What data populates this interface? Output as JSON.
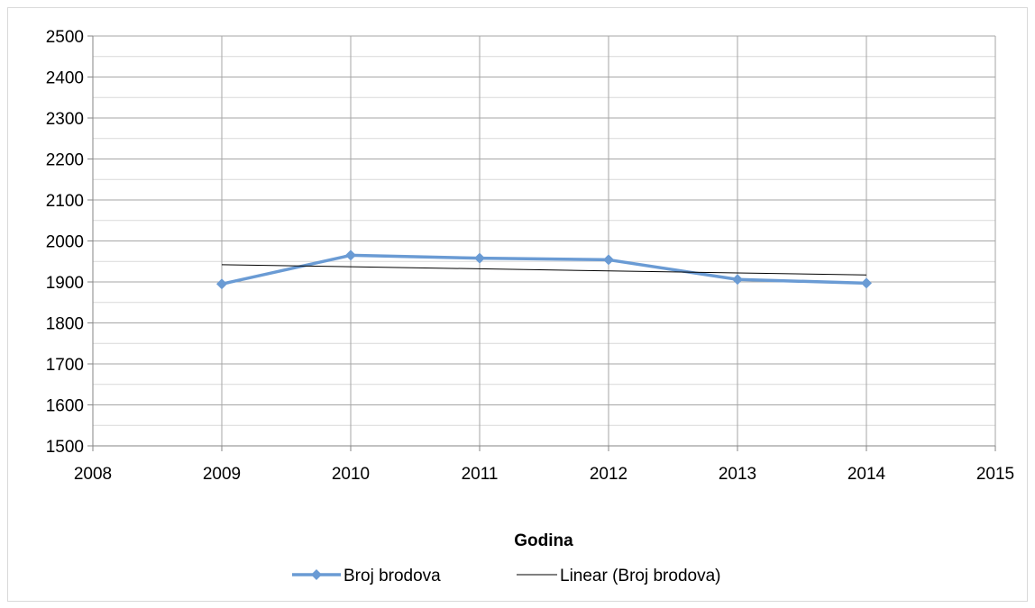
{
  "chart_data": {
    "type": "line",
    "xlabel": "Godina",
    "ylabel": "",
    "xlim": [
      2008,
      2015
    ],
    "ylim": [
      1500,
      2500
    ],
    "x_ticks": [
      2008,
      2009,
      2010,
      2011,
      2012,
      2013,
      2014,
      2015
    ],
    "y_ticks": [
      1500,
      1600,
      1700,
      1800,
      1900,
      2000,
      2100,
      2200,
      2300,
      2400,
      2500
    ],
    "grid": true,
    "legend_position": "bottom",
    "series": [
      {
        "name": "Broj brodova",
        "x": [
          2009,
          2010,
          2011,
          2012,
          2013,
          2014
        ],
        "values": [
          1895,
          1965,
          1958,
          1954,
          1906,
          1897
        ],
        "color": "#6a9bd4",
        "marker": "diamond"
      },
      {
        "name": "Linear (Broj brodova)",
        "x": [
          2009,
          2014
        ],
        "values": [
          1942,
          1917
        ],
        "color": "#000000",
        "marker": "none"
      }
    ]
  }
}
